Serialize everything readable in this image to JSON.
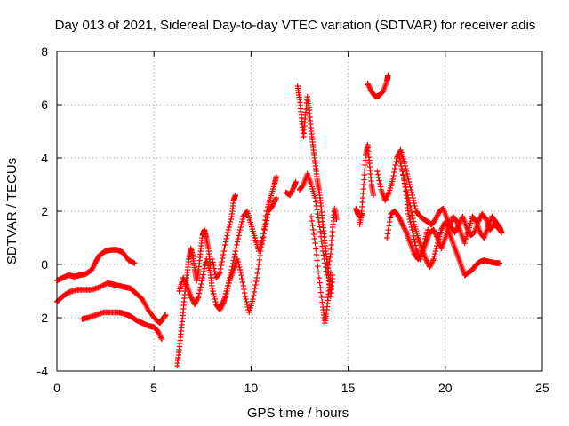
{
  "chart_data": {
    "type": "scatter",
    "title": "Day 013 of 2021, Sidereal Day-to-day VTEC variation (SDTVAR) for receiver adis",
    "xlabel": "GPS time / hours",
    "ylabel": "SDTVAR / TECUs",
    "xlim": [
      0,
      25
    ],
    "ylim": [
      -4,
      8
    ],
    "xticks": [
      "0",
      "5",
      "10",
      "15",
      "20",
      "25"
    ],
    "yticks": [
      "-4",
      "-2",
      "0",
      "2",
      "4",
      "6",
      "8"
    ],
    "grid": true,
    "marker": "+",
    "series": [
      {
        "name": "SDTVAR",
        "color": "#ff0000",
        "tracks": [
          [
            [
              0.0,
              -0.6
            ],
            [
              0.3,
              -0.5
            ],
            [
              0.6,
              -0.4
            ],
            [
              0.9,
              -0.45
            ],
            [
              1.2,
              -0.4
            ],
            [
              1.5,
              -0.35
            ],
            [
              1.8,
              -0.2
            ],
            [
              2.0,
              0.1
            ],
            [
              2.2,
              0.35
            ],
            [
              2.5,
              0.5
            ],
            [
              2.8,
              0.55
            ],
            [
              3.1,
              0.55
            ],
            [
              3.4,
              0.45
            ],
            [
              3.7,
              0.15
            ],
            [
              4.0,
              0.05
            ]
          ],
          [
            [
              0.0,
              -1.4
            ],
            [
              0.3,
              -1.2
            ],
            [
              0.6,
              -1.05
            ],
            [
              1.0,
              -0.95
            ],
            [
              1.4,
              -0.95
            ],
            [
              1.8,
              -0.95
            ],
            [
              2.2,
              -0.85
            ],
            [
              2.6,
              -0.7
            ],
            [
              2.9,
              -0.75
            ],
            [
              3.2,
              -0.8
            ],
            [
              3.5,
              -0.85
            ],
            [
              3.8,
              -0.9
            ],
            [
              4.1,
              -1.1
            ],
            [
              4.4,
              -1.3
            ],
            [
              4.7,
              -1.7
            ],
            [
              5.0,
              -2.0
            ],
            [
              5.3,
              -2.2
            ],
            [
              5.5,
              -2.0
            ],
            [
              5.6,
              -1.9
            ]
          ],
          [
            [
              1.3,
              -2.05
            ],
            [
              1.6,
              -2.0
            ],
            [
              2.0,
              -1.9
            ],
            [
              2.4,
              -1.8
            ],
            [
              2.8,
              -1.8
            ],
            [
              3.2,
              -1.8
            ],
            [
              3.5,
              -1.85
            ],
            [
              3.8,
              -1.95
            ],
            [
              4.1,
              -2.1
            ],
            [
              4.4,
              -2.2
            ],
            [
              4.7,
              -2.3
            ],
            [
              5.0,
              -2.35
            ],
            [
              5.2,
              -2.5
            ],
            [
              5.4,
              -2.8
            ]
          ],
          [
            [
              6.2,
              -3.8
            ],
            [
              6.3,
              -3.2
            ],
            [
              6.4,
              -2.5
            ],
            [
              6.5,
              -1.8
            ],
            [
              6.6,
              -1.0
            ],
            [
              6.7,
              -0.4
            ],
            [
              6.8,
              0.2
            ],
            [
              6.9,
              0.6
            ],
            [
              7.0,
              0.3
            ],
            [
              7.1,
              -0.2
            ],
            [
              7.2,
              -0.6
            ],
            [
              7.3,
              -0.2
            ],
            [
              7.4,
              0.5
            ],
            [
              7.5,
              1.1
            ],
            [
              7.6,
              1.3
            ],
            [
              7.7,
              1.0
            ],
            [
              7.8,
              0.6
            ],
            [
              7.9,
              0.0
            ]
          ],
          [
            [
              6.3,
              -1.0
            ],
            [
              6.5,
              -0.5
            ],
            [
              6.7,
              -0.8
            ],
            [
              6.9,
              -1.2
            ],
            [
              7.1,
              -1.5
            ],
            [
              7.3,
              -1.2
            ],
            [
              7.5,
              -0.5
            ],
            [
              7.7,
              0.2
            ],
            [
              7.9,
              -0.3
            ],
            [
              8.0,
              -0.9
            ],
            [
              8.2,
              -1.5
            ],
            [
              8.4,
              -1.7
            ],
            [
              8.6,
              -1.4
            ],
            [
              8.8,
              -0.8
            ],
            [
              9.0,
              -0.2
            ],
            [
              9.2,
              0.5
            ],
            [
              9.4,
              1.2
            ],
            [
              9.6,
              1.8
            ],
            [
              9.8,
              2.0
            ],
            [
              10.0,
              1.5
            ],
            [
              10.2,
              1.0
            ],
            [
              10.4,
              0.5
            ],
            [
              10.6,
              1.0
            ],
            [
              10.8,
              2.0
            ],
            [
              11.0,
              2.5
            ],
            [
              11.2,
              3.0
            ],
            [
              11.3,
              3.3
            ]
          ],
          [
            [
              8.0,
              0.2
            ],
            [
              8.2,
              -0.5
            ],
            [
              8.4,
              -0.3
            ],
            [
              8.6,
              0.5
            ],
            [
              8.8,
              1.2
            ],
            [
              9.0,
              1.8
            ],
            [
              9.1,
              2.4
            ],
            [
              9.2,
              2.6
            ]
          ],
          [
            [
              8.5,
              -1.5
            ],
            [
              8.7,
              -1.2
            ],
            [
              8.9,
              -0.6
            ],
            [
              9.1,
              -0.2
            ],
            [
              9.3,
              0.2
            ],
            [
              9.5,
              -0.4
            ],
            [
              9.7,
              -1.2
            ],
            [
              9.9,
              -1.8
            ],
            [
              10.1,
              -1.3
            ],
            [
              10.3,
              -0.5
            ],
            [
              10.5,
              0.5
            ],
            [
              10.7,
              1.3
            ],
            [
              10.9,
              2.0
            ],
            [
              11.1,
              2.2
            ],
            [
              11.3,
              2.5
            ]
          ],
          [
            [
              12.4,
              6.7
            ],
            [
              12.5,
              6.2
            ],
            [
              12.6,
              5.5
            ],
            [
              12.7,
              4.8
            ],
            [
              12.8,
              5.6
            ],
            [
              12.9,
              6.3
            ],
            [
              13.0,
              5.8
            ],
            [
              13.1,
              5.0
            ],
            [
              13.2,
              4.4
            ],
            [
              13.3,
              3.8
            ],
            [
              13.4,
              3.2
            ],
            [
              13.5,
              2.8
            ],
            [
              13.6,
              2.2
            ],
            [
              13.7,
              1.5
            ],
            [
              13.8,
              0.8
            ],
            [
              13.9,
              0.2
            ],
            [
              14.0,
              -0.5
            ],
            [
              14.1,
              -1.2
            ],
            [
              14.2,
              -0.4
            ]
          ],
          [
            [
              12.5,
              2.8
            ],
            [
              12.7,
              3.0
            ],
            [
              12.9,
              3.4
            ],
            [
              13.1,
              3.0
            ],
            [
              13.3,
              2.5
            ],
            [
              13.5,
              1.6
            ],
            [
              13.7,
              0.5
            ],
            [
              13.9,
              -0.4
            ],
            [
              14.1,
              0.4
            ],
            [
              14.2,
              1.4
            ],
            [
              14.3,
              2.1
            ],
            [
              14.4,
              1.7
            ]
          ],
          [
            [
              13.1,
              1.8
            ],
            [
              13.3,
              0.8
            ],
            [
              13.5,
              -0.5
            ],
            [
              13.7,
              -1.6
            ],
            [
              13.8,
              -2.2
            ],
            [
              13.9,
              -1.7
            ],
            [
              14.0,
              -1.0
            ],
            [
              14.1,
              -0.3
            ]
          ],
          [
            [
              15.6,
              1.5
            ],
            [
              15.7,
              2.0
            ],
            [
              15.8,
              3.0
            ],
            [
              15.9,
              4.1
            ],
            [
              16.0,
              4.5
            ],
            [
              16.1,
              3.8
            ],
            [
              16.2,
              3.0
            ],
            [
              16.3,
              2.6
            ]
          ],
          [
            [
              16.0,
              6.8
            ],
            [
              16.2,
              6.5
            ],
            [
              16.4,
              6.3
            ],
            [
              16.6,
              6.35
            ],
            [
              16.8,
              6.5
            ],
            [
              17.0,
              6.9
            ],
            [
              17.05,
              7.1
            ]
          ],
          [
            [
              16.5,
              3.5
            ],
            [
              16.7,
              2.8
            ],
            [
              16.9,
              2.4
            ],
            [
              17.1,
              2.7
            ],
            [
              17.3,
              3.2
            ],
            [
              17.5,
              4.0
            ],
            [
              17.7,
              4.3
            ],
            [
              17.9,
              3.8
            ],
            [
              18.1,
              3.2
            ],
            [
              18.3,
              2.6
            ],
            [
              18.5,
              2.0
            ],
            [
              18.7,
              1.8
            ],
            [
              18.9,
              1.7
            ],
            [
              19.1,
              1.6
            ],
            [
              19.3,
              1.5
            ],
            [
              19.5,
              1.7
            ],
            [
              19.7,
              2.0
            ],
            [
              19.9,
              2.1
            ],
            [
              20.1,
              1.7
            ],
            [
              20.3,
              1.4
            ],
            [
              20.5,
              1.2
            ],
            [
              20.7,
              1.5
            ],
            [
              20.9,
              1.8
            ],
            [
              21.1,
              1.4
            ],
            [
              21.3,
              1.1
            ],
            [
              21.5,
              1.2
            ],
            [
              21.7,
              1.6
            ],
            [
              21.9,
              1.9
            ],
            [
              22.1,
              1.7
            ],
            [
              22.3,
              1.3
            ],
            [
              22.5,
              1.5
            ],
            [
              22.7,
              1.4
            ],
            [
              22.9,
              1.2
            ]
          ],
          [
            [
              17.0,
              1.0
            ],
            [
              17.2,
              1.9
            ],
            [
              17.4,
              2.0
            ],
            [
              17.6,
              1.8
            ],
            [
              17.8,
              1.5
            ],
            [
              18.0,
              1.2
            ],
            [
              18.2,
              0.8
            ],
            [
              18.4,
              0.4
            ],
            [
              18.6,
              0.2
            ],
            [
              18.8,
              0.4
            ],
            [
              19.0,
              0.8
            ],
            [
              19.2,
              1.2
            ],
            [
              19.4,
              1.3
            ],
            [
              19.6,
              1.0
            ],
            [
              19.8,
              0.6
            ],
            [
              20.0,
              1.0
            ],
            [
              20.2,
              1.4
            ],
            [
              20.4,
              1.8
            ],
            [
              20.6,
              1.6
            ],
            [
              20.8,
              1.2
            ],
            [
              21.0,
              0.8
            ],
            [
              21.2,
              1.3
            ],
            [
              21.4,
              1.8
            ],
            [
              21.6,
              1.6
            ],
            [
              21.8,
              1.2
            ],
            [
              22.0,
              1.0
            ],
            [
              22.2,
              1.4
            ],
            [
              22.4,
              1.8
            ],
            [
              22.6,
              1.6
            ],
            [
              22.8,
              1.4
            ],
            [
              22.9,
              1.2
            ]
          ],
          [
            [
              17.6,
              4.1
            ],
            [
              17.8,
              3.5
            ],
            [
              18.0,
              2.8
            ],
            [
              18.2,
              2.2
            ],
            [
              18.4,
              1.5
            ],
            [
              18.6,
              1.0
            ],
            [
              18.8,
              0.6
            ],
            [
              19.0,
              0.2
            ],
            [
              19.2,
              -0.1
            ],
            [
              19.4,
              0.2
            ],
            [
              19.6,
              0.8
            ],
            [
              19.8,
              1.3
            ],
            [
              20.0,
              1.6
            ],
            [
              20.2,
              1.2
            ],
            [
              20.4,
              0.8
            ],
            [
              20.6,
              0.4
            ],
            [
              20.8,
              0.0
            ],
            [
              21.0,
              -0.4
            ],
            [
              21.2,
              -0.3
            ],
            [
              21.4,
              -0.2
            ],
            [
              21.6,
              0.0
            ],
            [
              21.8,
              0.1
            ],
            [
              22.0,
              0.15
            ],
            [
              22.3,
              0.1
            ],
            [
              22.6,
              0.05
            ],
            [
              22.8,
              0.05
            ]
          ],
          [
            [
              17.8,
              3.5
            ],
            [
              18.0,
              2.6
            ],
            [
              18.1,
              1.9
            ],
            [
              18.3,
              1.3
            ],
            [
              18.5,
              0.6
            ],
            [
              18.7,
              0.2
            ],
            [
              18.9,
              0.8
            ],
            [
              19.1,
              1.3
            ]
          ],
          [
            [
              11.8,
              2.7
            ],
            [
              12.0,
              2.6
            ],
            [
              12.2,
              2.9
            ],
            [
              12.3,
              3.1
            ]
          ],
          [
            [
              15.4,
              2.1
            ],
            [
              15.5,
              1.9
            ],
            [
              15.6,
              1.8
            ],
            [
              15.7,
              1.9
            ]
          ]
        ]
      }
    ]
  }
}
